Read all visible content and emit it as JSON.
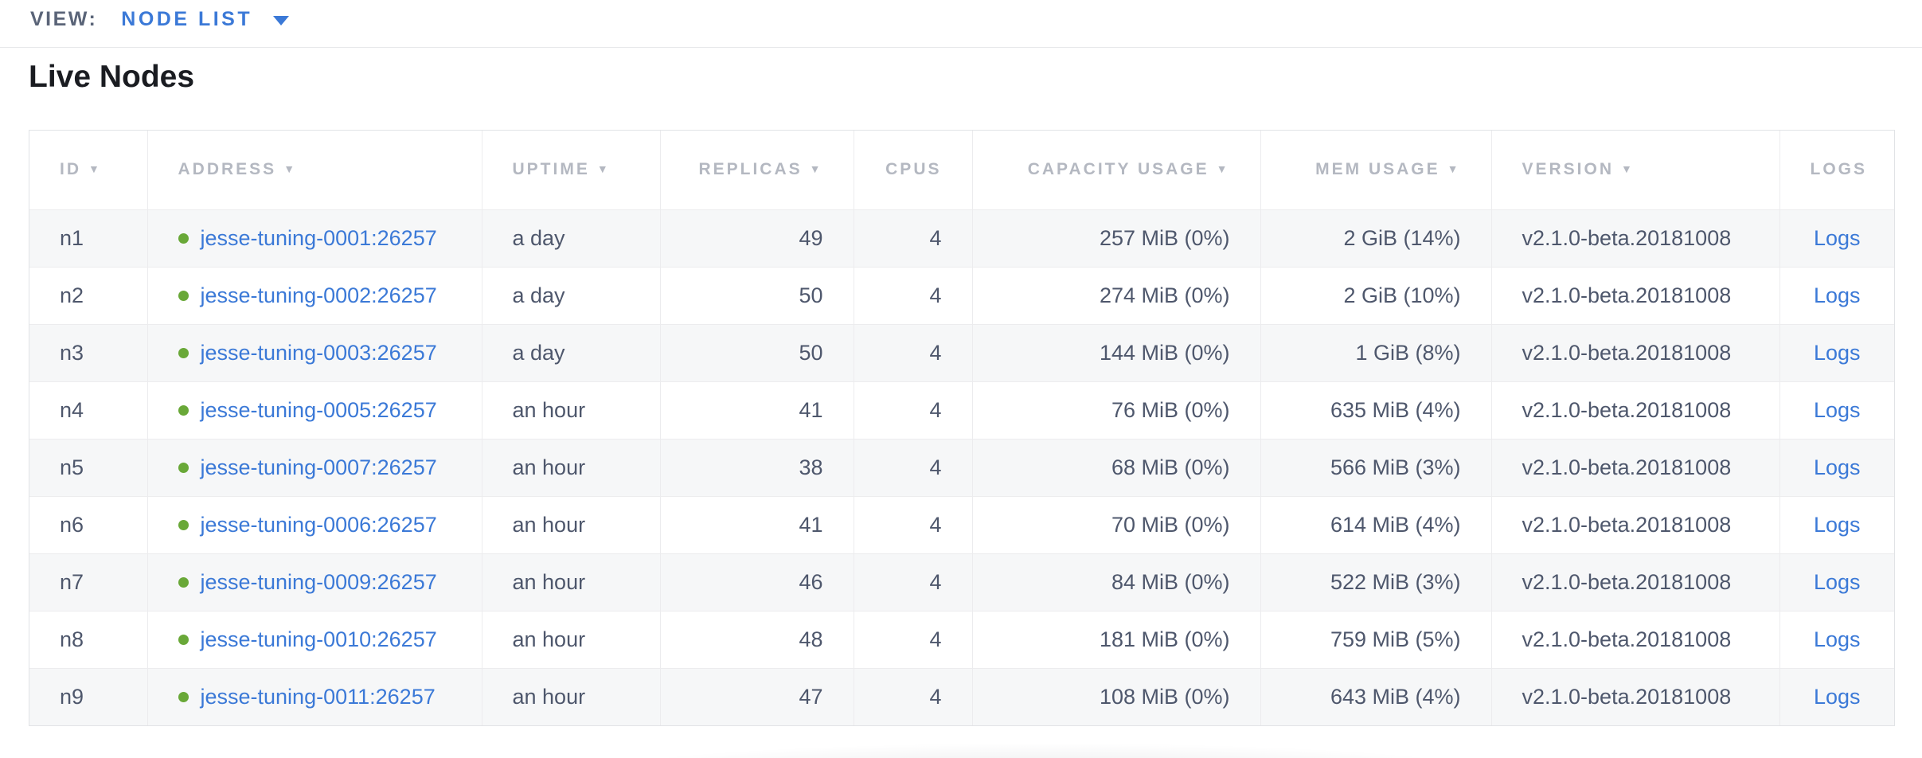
{
  "view_bar": {
    "label": "VIEW:",
    "selected_view": "NODE LIST"
  },
  "page_title": "Live Nodes",
  "table": {
    "sort_indicator": "▼",
    "columns": [
      {
        "key": "id",
        "label": "ID",
        "sortable": true,
        "align": "left"
      },
      {
        "key": "address",
        "label": "ADDRESS",
        "sortable": true,
        "align": "left"
      },
      {
        "key": "uptime",
        "label": "UPTIME",
        "sortable": true,
        "align": "left"
      },
      {
        "key": "replicas",
        "label": "REPLICAS",
        "sortable": true,
        "align": "right"
      },
      {
        "key": "cpus",
        "label": "CPUS",
        "sortable": false,
        "align": "right"
      },
      {
        "key": "capacity",
        "label": "CAPACITY USAGE",
        "sortable": true,
        "align": "right"
      },
      {
        "key": "mem",
        "label": "MEM USAGE",
        "sortable": true,
        "align": "right"
      },
      {
        "key": "version",
        "label": "VERSION",
        "sortable": true,
        "align": "left"
      },
      {
        "key": "logs",
        "label": "LOGS",
        "sortable": false,
        "align": "center"
      }
    ],
    "rows": [
      {
        "id": "n1",
        "status": "live",
        "address": "jesse-tuning-0001:26257",
        "uptime": "a day",
        "replicas": "49",
        "cpus": "4",
        "capacity": "257 MiB (0%)",
        "mem": "2 GiB (14%)",
        "version": "v2.1.0-beta.20181008",
        "logs_label": "Logs"
      },
      {
        "id": "n2",
        "status": "live",
        "address": "jesse-tuning-0002:26257",
        "uptime": "a day",
        "replicas": "50",
        "cpus": "4",
        "capacity": "274 MiB (0%)",
        "mem": "2 GiB (10%)",
        "version": "v2.1.0-beta.20181008",
        "logs_label": "Logs"
      },
      {
        "id": "n3",
        "status": "live",
        "address": "jesse-tuning-0003:26257",
        "uptime": "a day",
        "replicas": "50",
        "cpus": "4",
        "capacity": "144 MiB (0%)",
        "mem": "1 GiB (8%)",
        "version": "v2.1.0-beta.20181008",
        "logs_label": "Logs"
      },
      {
        "id": "n4",
        "status": "live",
        "address": "jesse-tuning-0005:26257",
        "uptime": "an hour",
        "replicas": "41",
        "cpus": "4",
        "capacity": "76 MiB (0%)",
        "mem": "635 MiB (4%)",
        "version": "v2.1.0-beta.20181008",
        "logs_label": "Logs"
      },
      {
        "id": "n5",
        "status": "live",
        "address": "jesse-tuning-0007:26257",
        "uptime": "an hour",
        "replicas": "38",
        "cpus": "4",
        "capacity": "68 MiB (0%)",
        "mem": "566 MiB (3%)",
        "version": "v2.1.0-beta.20181008",
        "logs_label": "Logs"
      },
      {
        "id": "n6",
        "status": "live",
        "address": "jesse-tuning-0006:26257",
        "uptime": "an hour",
        "replicas": "41",
        "cpus": "4",
        "capacity": "70 MiB (0%)",
        "mem": "614 MiB (4%)",
        "version": "v2.1.0-beta.20181008",
        "logs_label": "Logs"
      },
      {
        "id": "n7",
        "status": "live",
        "address": "jesse-tuning-0009:26257",
        "uptime": "an hour",
        "replicas": "46",
        "cpus": "4",
        "capacity": "84 MiB (0%)",
        "mem": "522 MiB (3%)",
        "version": "v2.1.0-beta.20181008",
        "logs_label": "Logs"
      },
      {
        "id": "n8",
        "status": "live",
        "address": "jesse-tuning-0010:26257",
        "uptime": "an hour",
        "replicas": "48",
        "cpus": "4",
        "capacity": "181 MiB (0%)",
        "mem": "759 MiB (5%)",
        "version": "v2.1.0-beta.20181008",
        "logs_label": "Logs"
      },
      {
        "id": "n9",
        "status": "live",
        "address": "jesse-tuning-0011:26257",
        "uptime": "an hour",
        "replicas": "47",
        "cpus": "4",
        "capacity": "108 MiB (0%)",
        "mem": "643 MiB (4%)",
        "version": "v2.1.0-beta.20181008",
        "logs_label": "Logs"
      }
    ]
  },
  "colors": {
    "accent_blue": "#3b79d7",
    "live_green": "#69a838",
    "header_gray": "#b4b8c1",
    "cell_text": "#4e576c",
    "zebra_row": "#f6f7f8"
  }
}
